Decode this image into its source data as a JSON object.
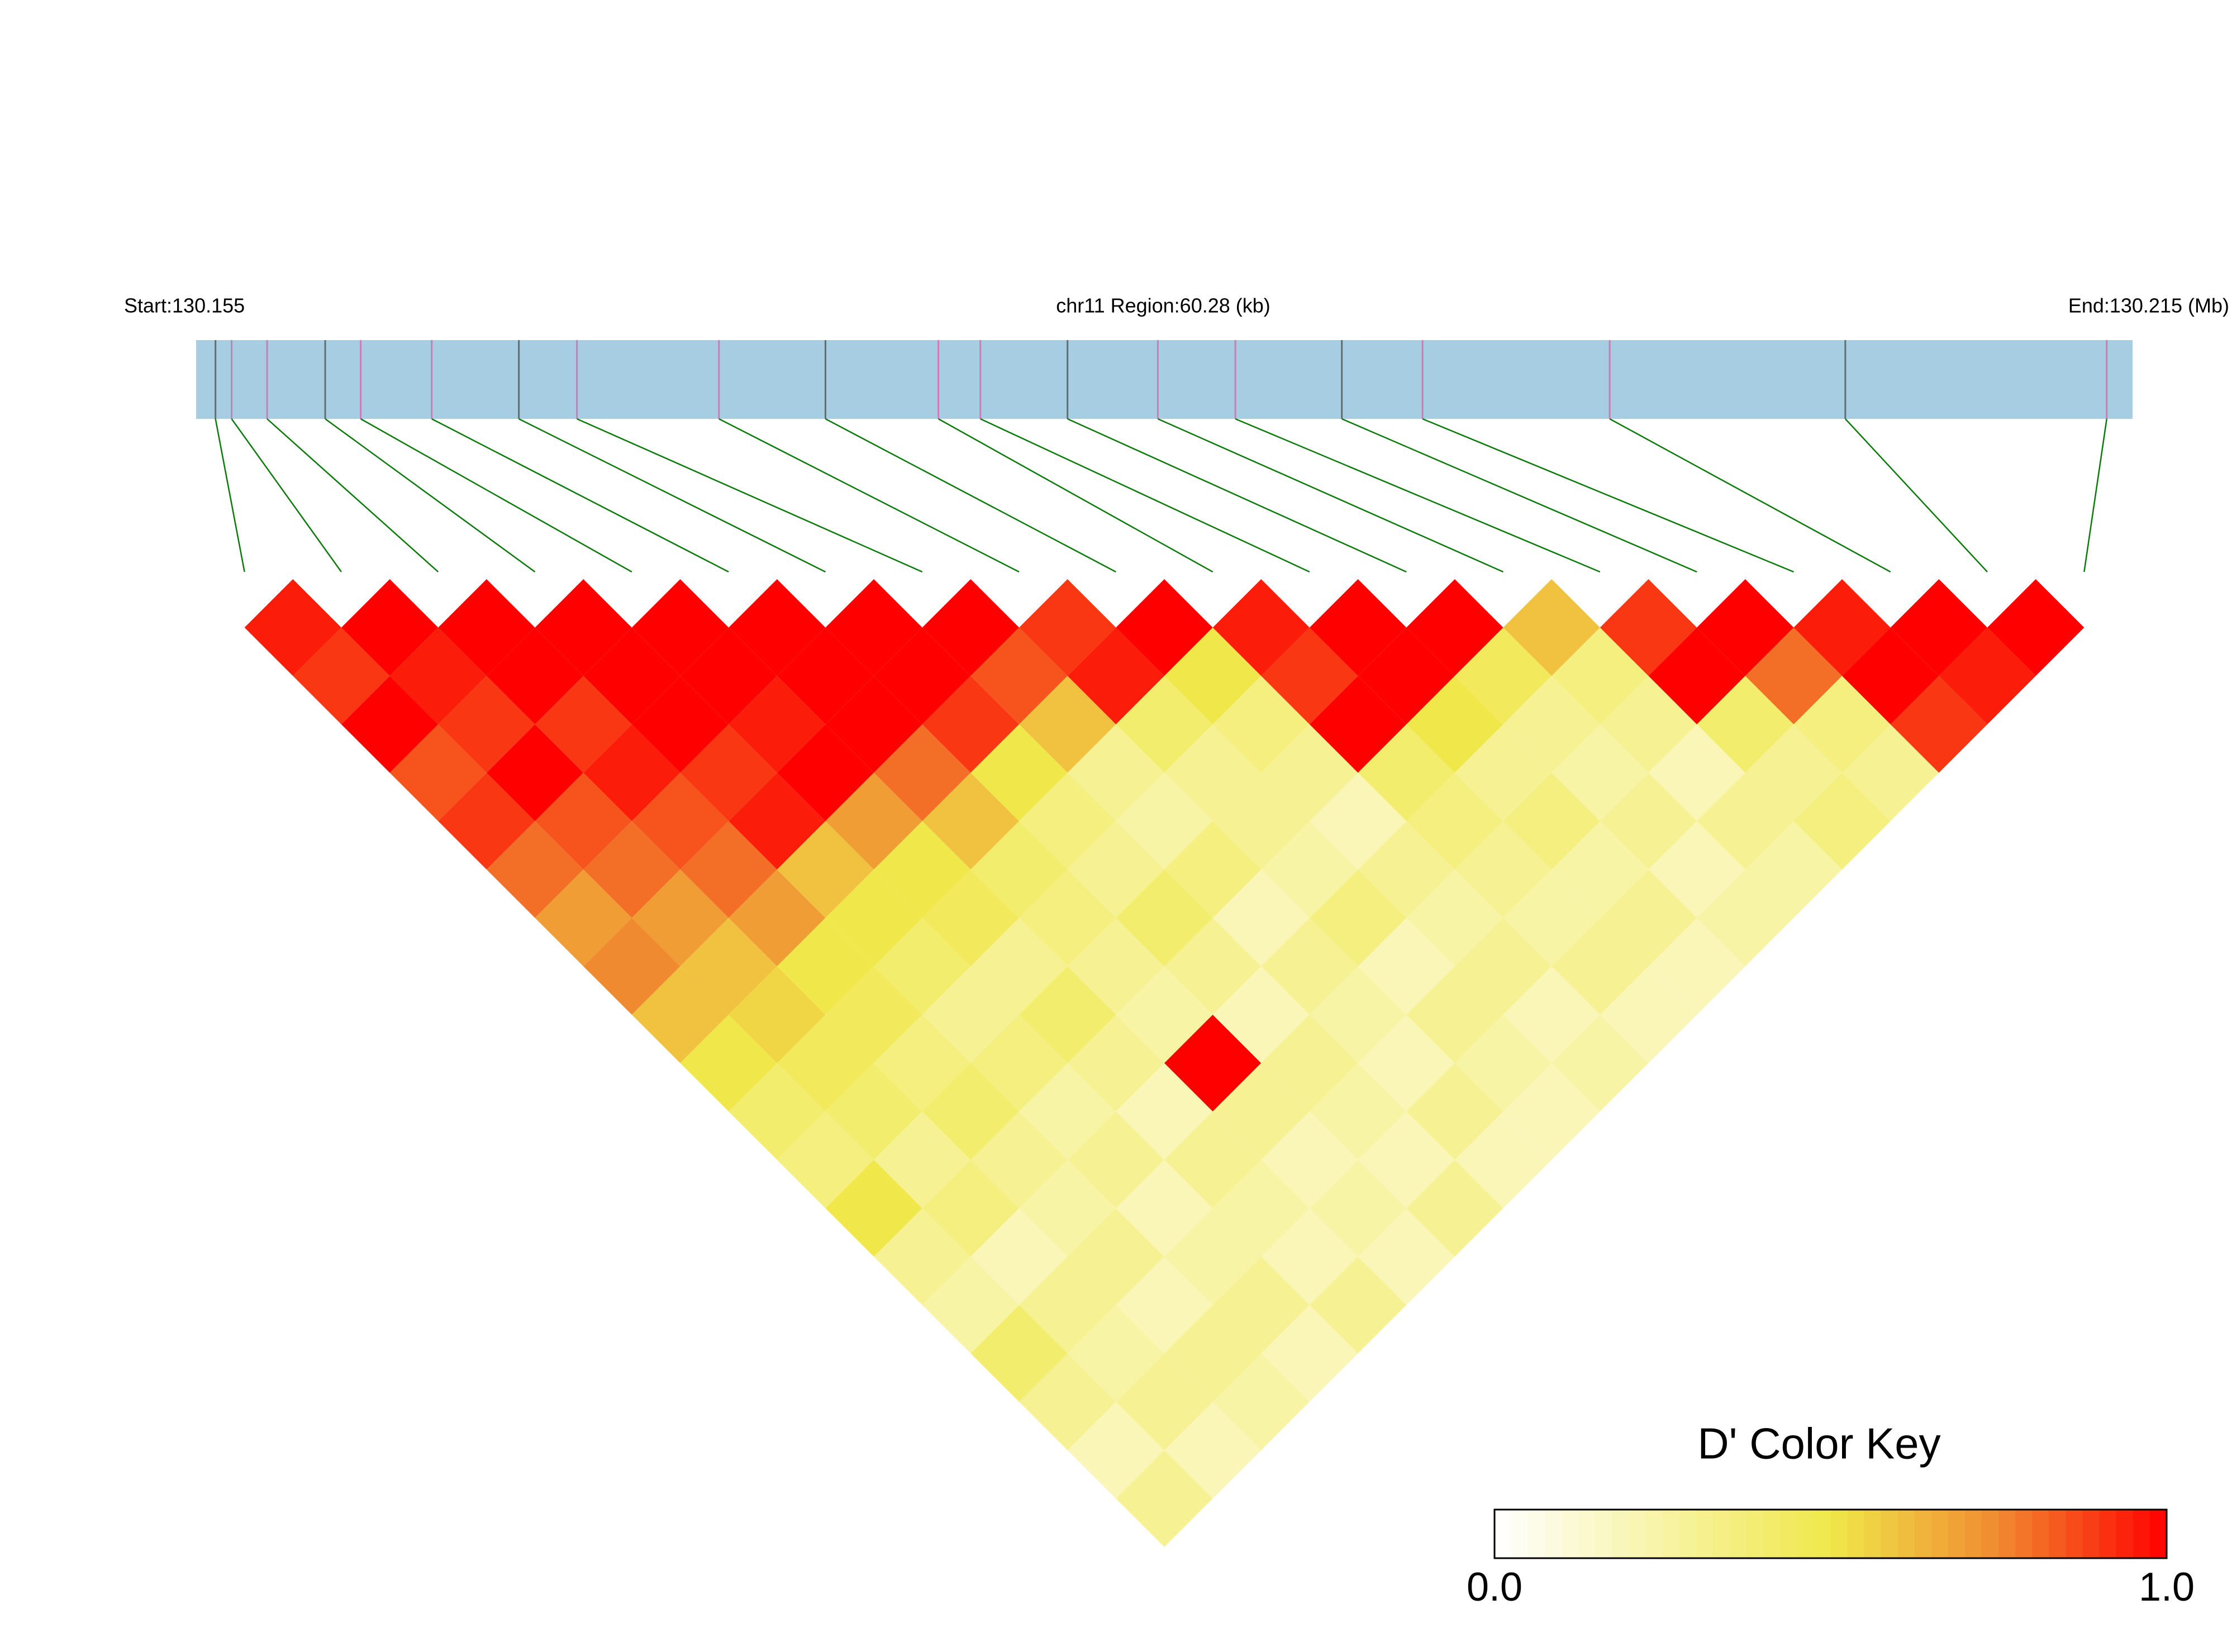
{
  "chart_data": {
    "type": "heatmap",
    "start_label": "Start:130.155",
    "region_label": "chr11 Region:60.28 (kb)",
    "end_label": "End:130.215 (Mb)",
    "xlim": [
      130.155,
      130.215
    ],
    "snp_positions": [
      130.1556,
      130.1561,
      130.1572,
      130.159,
      130.1601,
      130.1623,
      130.165,
      130.1668,
      130.1712,
      130.1745,
      130.178,
      130.1793,
      130.182,
      130.1848,
      130.1872,
      130.1905,
      130.193,
      130.1988,
      130.2061,
      130.2142
    ],
    "values": [
      [
        0.95,
        0.9,
        1,
        0.85,
        0.9,
        0.8,
        0.7,
        0.75,
        0.6,
        0.5,
        0.4,
        0.35,
        0.5,
        0.3,
        0.25,
        0.4,
        0.3,
        0.2,
        0.3
      ],
      [
        1,
        0.95,
        0.9,
        1,
        0.85,
        0.8,
        0.7,
        0.6,
        0.55,
        0.45,
        0.4,
        0.3,
        0.35,
        0.2,
        0.3,
        0.25,
        0.3,
        0.2
      ],
      [
        1,
        1,
        0.9,
        0.95,
        0.85,
        0.8,
        0.7,
        0.5,
        0.45,
        0.35,
        0.4,
        0.3,
        0.25,
        0.3,
        0.2,
        0.3,
        0.25
      ],
      [
        1,
        1,
        1,
        0.9,
        0.95,
        0.6,
        0.5,
        0.4,
        0.3,
        0.35,
        0.25,
        0.3,
        0.2,
        0.25,
        0.3,
        0.2
      ],
      [
        1,
        1,
        0.95,
        1,
        0.7,
        0.5,
        0.45,
        0.3,
        0.4,
        0.3,
        0.2,
        0.3,
        0.25,
        0.2,
        0.3
      ],
      [
        1,
        1,
        1,
        0.8,
        0.6,
        0.4,
        0.35,
        0.3,
        0.25,
        1,
        0.3,
        0.2,
        0.25,
        0.2
      ],
      [
        1,
        1,
        0.9,
        0.5,
        0.35,
        0.3,
        0.4,
        0.3,
        0.2,
        0.3,
        0.25,
        0.2,
        0.3
      ],
      [
        1,
        0.85,
        0.6,
        0.3,
        0.25,
        0.35,
        0.2,
        0.3,
        0.25,
        0.2,
        0.3,
        0.2
      ],
      [
        0.9,
        0.95,
        0.4,
        0.3,
        0.3,
        0.25,
        0.35,
        0.2,
        0.3,
        0.25,
        0.2
      ],
      [
        1,
        0.5,
        0.35,
        0.3,
        0.2,
        0.3,
        0.25,
        0.3,
        0.2,
        0.25
      ],
      [
        0.95,
        0.9,
        1,
        0.4,
        0.35,
        0.3,
        0.25,
        0.3,
        0.2
      ],
      [
        1,
        1,
        0.5,
        0.3,
        0.35,
        0.25,
        0.3,
        0.2
      ],
      [
        1,
        0.45,
        0.3,
        0.25,
        0.3,
        0.2,
        0.25
      ],
      [
        0.6,
        0.35,
        0.3,
        0.2,
        0.3,
        0.25
      ],
      [
        0.9,
        1,
        0.4,
        0.3,
        0.35
      ],
      [
        1,
        0.8,
        0.35,
        0.3
      ],
      [
        0.95,
        1,
        0.9
      ],
      [
        1,
        0.95
      ],
      [
        1
      ]
    ],
    "key_title": "D' Color Key",
    "key_lim": [
      0,
      1
    ],
    "key_ticks": [
      {
        "value": 0,
        "label": "0.0"
      },
      {
        "value": 1,
        "label": "1.0"
      }
    ]
  }
}
